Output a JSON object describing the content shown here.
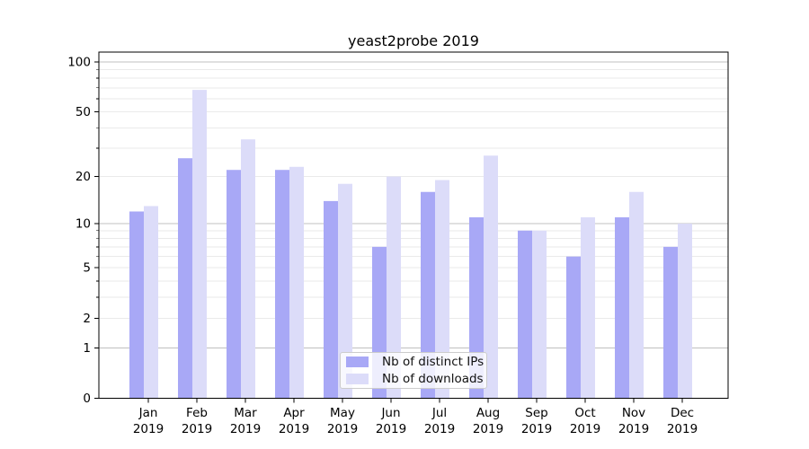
{
  "chart_data": {
    "type": "bar",
    "title": "yeast2probe 2019",
    "xlabel": "",
    "ylabel": "",
    "yscale": "log1p",
    "ylim": [
      0,
      115
    ],
    "yticks": [
      0,
      1,
      2,
      5,
      10,
      20,
      50,
      100
    ],
    "grid": {
      "major": [
        1,
        10,
        100
      ],
      "minor": [
        2,
        3,
        4,
        6,
        7,
        8,
        9,
        20,
        30,
        40,
        60,
        70,
        80,
        90
      ],
      "minor_labeled": [
        2,
        5,
        20,
        50
      ],
      "major_color": "#c0c0c0",
      "minor_color": "#eaeaea"
    },
    "categories": [
      {
        "month": "Jan",
        "year": "2019"
      },
      {
        "month": "Feb",
        "year": "2019"
      },
      {
        "month": "Mar",
        "year": "2019"
      },
      {
        "month": "Apr",
        "year": "2019"
      },
      {
        "month": "May",
        "year": "2019"
      },
      {
        "month": "Jun",
        "year": "2019"
      },
      {
        "month": "Jul",
        "year": "2019"
      },
      {
        "month": "Aug",
        "year": "2019"
      },
      {
        "month": "Sep",
        "year": "2019"
      },
      {
        "month": "Oct",
        "year": "2019"
      },
      {
        "month": "Nov",
        "year": "2019"
      },
      {
        "month": "Dec",
        "year": "2019"
      }
    ],
    "series": [
      {
        "name": "Nb of distinct IPs",
        "color": "#a8a8f6",
        "values": [
          12,
          26,
          22,
          22,
          14,
          7,
          16,
          11,
          9,
          6,
          11,
          7
        ]
      },
      {
        "name": "Nb of downloads",
        "color": "#dcdcf9",
        "values": [
          13,
          68,
          34,
          23,
          18,
          20,
          19,
          27,
          9,
          11,
          16,
          10
        ]
      }
    ],
    "legend": {
      "position": "lower center"
    }
  }
}
